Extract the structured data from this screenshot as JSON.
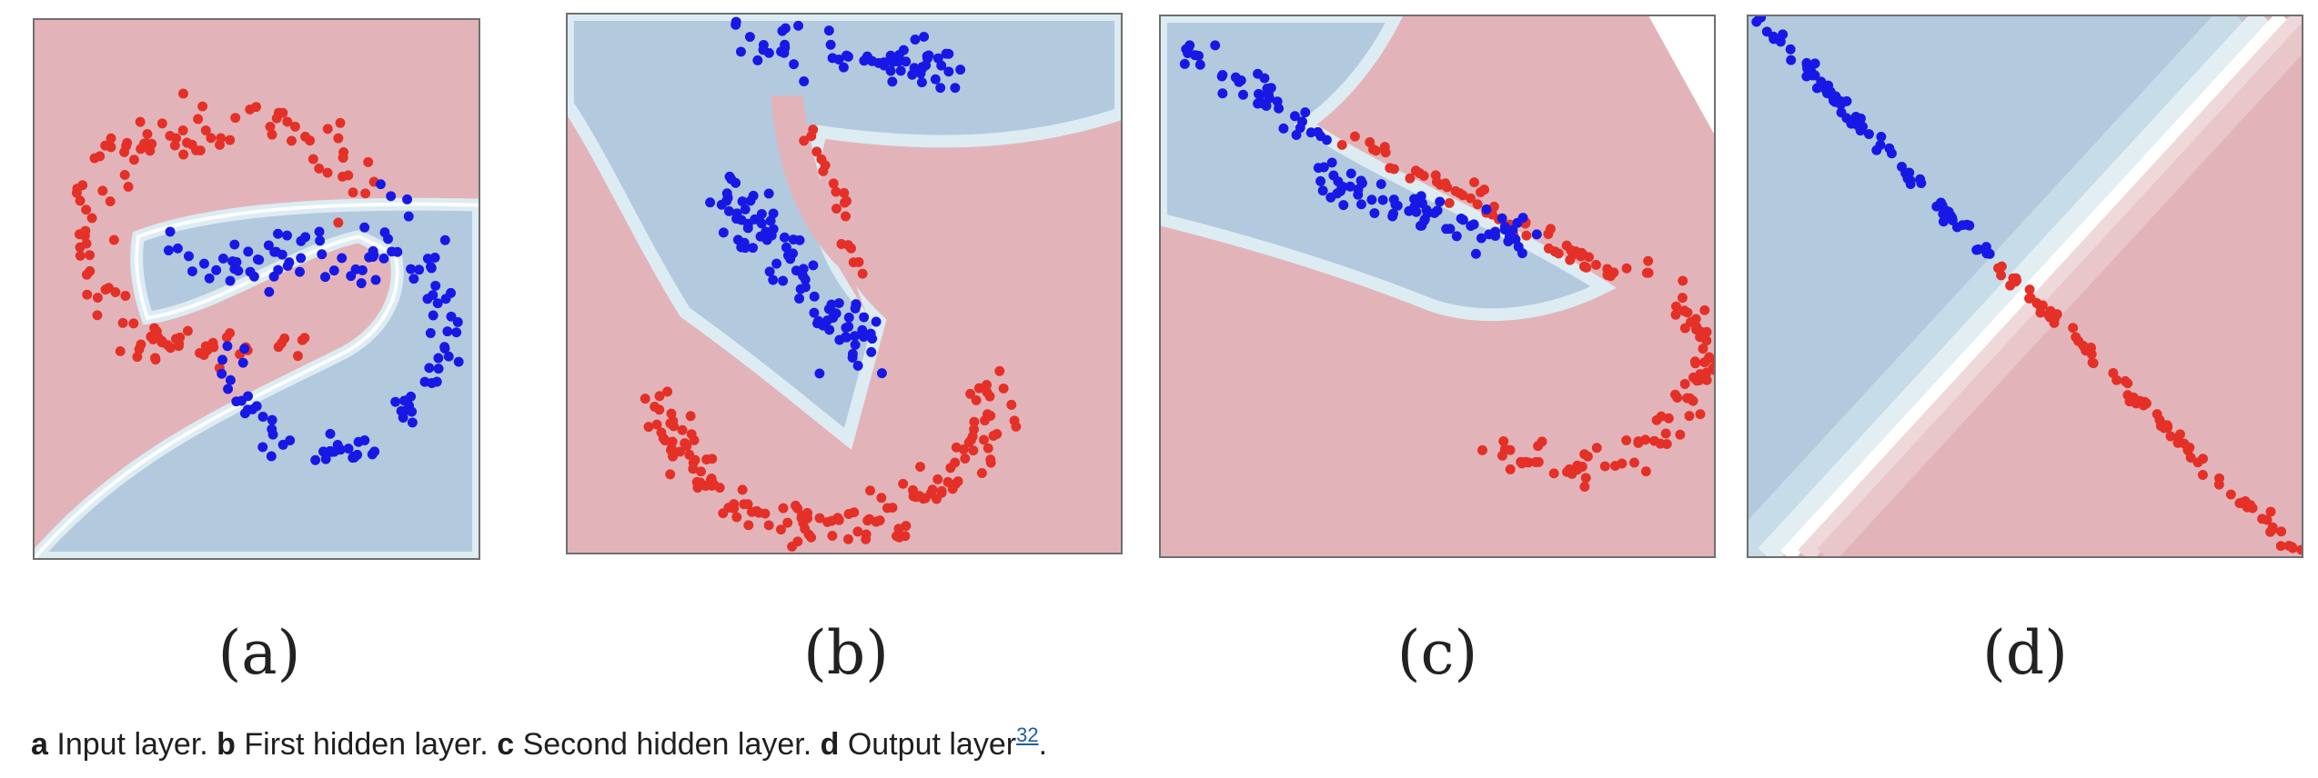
{
  "colors": {
    "class_red": "#e53027",
    "class_blue": "#1818e6",
    "region_red": "#e2b4ba",
    "region_blue": "#b3c9de",
    "boundary": "#cfe3ec",
    "boundary_mid": "#ffffff",
    "panel_border": "#6f6f6f"
  },
  "panels": [
    {
      "id": "a",
      "label": "(a)",
      "layer": "Input layer"
    },
    {
      "id": "b",
      "label": "(b)",
      "layer": "First hidden layer"
    },
    {
      "id": "c",
      "label": "(c)",
      "layer": "Second hidden layer"
    },
    {
      "id": "d",
      "label": "(d)",
      "layer": "Output layer"
    }
  ],
  "caption": {
    "items": [
      {
        "letter": "a",
        "text": "Input layer."
      },
      {
        "letter": "b",
        "text": "First hidden layer."
      },
      {
        "letter": "c",
        "text": "Second hidden layer."
      },
      {
        "letter": "d",
        "text": "Output layer"
      }
    ],
    "ref": "32",
    "end": "."
  }
}
